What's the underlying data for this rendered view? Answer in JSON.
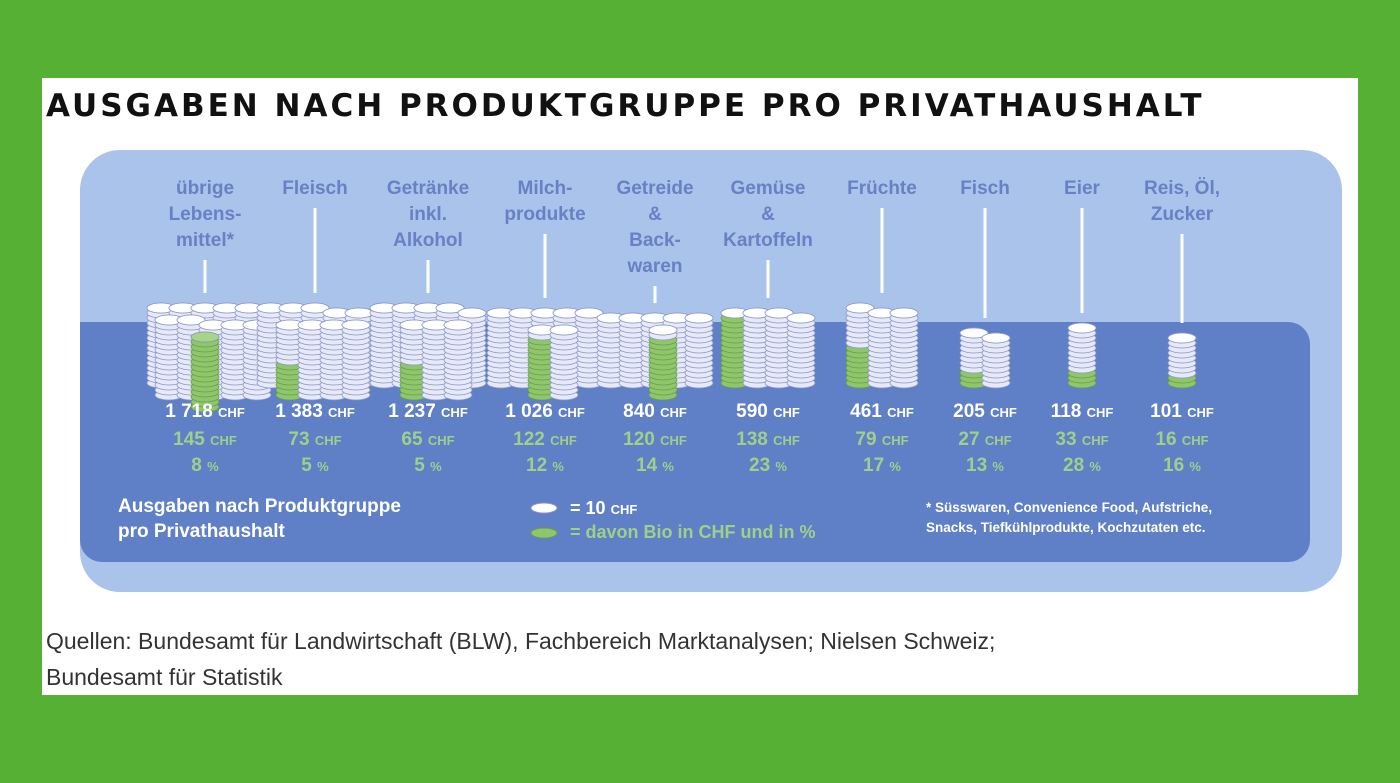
{
  "chart_data": {
    "type": "pictogram-bar",
    "title": "AUSGABEN NACH PRODUKTGRUPPE PRO PRIVATHAUSHALT",
    "unit": "CHF",
    "categories": [
      "übrige Lebens- mittel*",
      "Fleisch",
      "Getränke inkl. Alkohol",
      "Milch- produkte",
      "Getreide & Back- waren",
      "Gemüse & Kartoffeln",
      "Früchte",
      "Fisch",
      "Eier",
      "Reis, Öl, Zucker"
    ],
    "category_lines": [
      [
        "übrige",
        "Lebens-",
        "mittel*"
      ],
      [
        "Fleisch"
      ],
      [
        "Getränke",
        "inkl.",
        "Alkohol"
      ],
      [
        "Milch-",
        "produkte"
      ],
      [
        "Getreide",
        "&",
        "Back-",
        "waren"
      ],
      [
        "Gemüse",
        "&",
        "Kartoffeln"
      ],
      [
        "Früchte"
      ],
      [
        "Fisch"
      ],
      [
        "Eier"
      ],
      [
        "Reis, Öl,",
        "Zucker"
      ]
    ],
    "series": [
      {
        "name": "Ausgaben nach Produktgruppe pro Privathaushalt",
        "values": [
          1718,
          1383,
          1237,
          1026,
          840,
          590,
          461,
          205,
          118,
          101
        ],
        "labels": [
          "1 718",
          "1 383",
          "1 237",
          "1 026",
          "840",
          "590",
          "461",
          "205",
          "118",
          "101"
        ]
      },
      {
        "name": "davon Bio in CHF und in %",
        "values": [
          145,
          73,
          65,
          122,
          120,
          138,
          79,
          27,
          33,
          16
        ]
      },
      {
        "name": "Bio %",
        "values": [
          8,
          5,
          5,
          12,
          14,
          23,
          17,
          13,
          28,
          16
        ]
      }
    ],
    "currency_label": "CHF",
    "percent_label": "%",
    "legend": {
      "title_lines": [
        "Ausgaben nach Produktgruppe",
        "pro Privathaushalt"
      ],
      "coin_label": "= 10",
      "coin_unit": "CHF",
      "bio_label": "= davon Bio in CHF und in %",
      "coin_value": 10
    },
    "footnote_lines": [
      "* Süsswaren, Convenience Food, Aufstriche,",
      "Snacks, Tiefkühlprodukte, Kochzutaten etc."
    ],
    "colors": {
      "background": "#55b034",
      "panel": "#a9c3ea",
      "inner_panel": "#5f7fc6",
      "coin": "#ffffff",
      "bio_coin": "#8fc56b",
      "label": "#6a80c4"
    }
  },
  "sources_lines": [
    "Quellen: Bundesamt für Landwirtschaft (BLW), Fachbereich Marktanalysen; Nielsen Schweiz;",
    "Bundesamt für Statistik"
  ]
}
